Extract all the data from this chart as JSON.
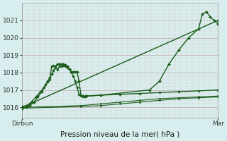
{
  "title": "Pression niveau de la mer( hPa )",
  "xlabel_left": "Dirbun",
  "xlabel_right": "Mar",
  "ylim": [
    1015.4,
    1021.7
  ],
  "xlim": [
    0,
    100
  ],
  "yticks": [
    1016,
    1017,
    1018,
    1019,
    1020,
    1021
  ],
  "background_color": "#d8eeee",
  "grid_color_major": "#c8b0b0",
  "grid_color_minor": "#ddc8c8",
  "line_color": "#1a5c1a",
  "series": {
    "line1_wavy": [
      [
        0,
        1016.05
      ],
      [
        2,
        1016.1
      ],
      [
        3,
        1016.15
      ],
      [
        5,
        1016.35
      ],
      [
        7,
        1016.6
      ],
      [
        9,
        1016.85
      ],
      [
        11,
        1017.15
      ],
      [
        13,
        1017.45
      ],
      [
        14,
        1017.6
      ],
      [
        15,
        1018.35
      ],
      [
        16,
        1018.4
      ],
      [
        17,
        1018.3
      ],
      [
        18,
        1018.15
      ],
      [
        19,
        1018.35
      ],
      [
        20,
        1018.35
      ],
      [
        21,
        1018.4
      ],
      [
        22,
        1018.35
      ],
      [
        23,
        1018.3
      ],
      [
        24,
        1018.2
      ],
      [
        25,
        1018.05
      ],
      [
        26,
        1017.8
      ],
      [
        27,
        1017.5
      ],
      [
        28,
        1017.15
      ],
      [
        29,
        1016.75
      ],
      [
        30,
        1016.65
      ],
      [
        31,
        1016.65
      ],
      [
        32,
        1016.65
      ],
      [
        33,
        1016.65
      ],
      [
        40,
        1016.7
      ],
      [
        50,
        1016.75
      ],
      [
        60,
        1016.8
      ],
      [
        70,
        1016.85
      ],
      [
        80,
        1016.9
      ],
      [
        90,
        1016.95
      ],
      [
        100,
        1017.0
      ]
    ],
    "line2_peak": [
      [
        0,
        1015.95
      ],
      [
        2,
        1016.0
      ],
      [
        4,
        1016.1
      ],
      [
        6,
        1016.3
      ],
      [
        8,
        1016.6
      ],
      [
        10,
        1016.9
      ],
      [
        12,
        1017.3
      ],
      [
        13,
        1017.5
      ],
      [
        14,
        1017.7
      ],
      [
        15,
        1017.9
      ],
      [
        16,
        1018.1
      ],
      [
        17,
        1018.35
      ],
      [
        18,
        1018.5
      ],
      [
        19,
        1018.5
      ],
      [
        20,
        1018.5
      ],
      [
        21,
        1018.5
      ],
      [
        22,
        1018.45
      ],
      [
        23,
        1018.35
      ],
      [
        24,
        1018.2
      ],
      [
        25,
        1018.05
      ],
      [
        26,
        1018.05
      ],
      [
        27,
        1018.05
      ],
      [
        28,
        1018.05
      ],
      [
        29,
        1017.5
      ],
      [
        30,
        1016.7
      ],
      [
        31,
        1016.6
      ],
      [
        32,
        1016.6
      ],
      [
        33,
        1016.65
      ],
      [
        40,
        1016.7
      ],
      [
        65,
        1017.0
      ],
      [
        70,
        1017.5
      ],
      [
        75,
        1018.5
      ],
      [
        80,
        1019.3
      ],
      [
        85,
        1020.0
      ],
      [
        90,
        1020.5
      ],
      [
        92,
        1021.35
      ],
      [
        94,
        1021.5
      ],
      [
        96,
        1021.2
      ],
      [
        98,
        1021.0
      ],
      [
        100,
        1020.8
      ]
    ],
    "line3_diagonal": [
      [
        0,
        1016.0
      ],
      [
        100,
        1021.0
      ]
    ],
    "line4_flat1": [
      [
        0,
        1016.0
      ],
      [
        30,
        1016.1
      ],
      [
        40,
        1016.2
      ],
      [
        50,
        1016.3
      ],
      [
        60,
        1016.4
      ],
      [
        70,
        1016.5
      ],
      [
        80,
        1016.55
      ],
      [
        90,
        1016.6
      ],
      [
        100,
        1016.65
      ]
    ],
    "line5_flat2": [
      [
        0,
        1015.95
      ],
      [
        30,
        1016.05
      ],
      [
        40,
        1016.1
      ],
      [
        50,
        1016.2
      ],
      [
        60,
        1016.3
      ],
      [
        70,
        1016.4
      ],
      [
        80,
        1016.5
      ],
      [
        90,
        1016.55
      ],
      [
        100,
        1016.6
      ]
    ]
  }
}
